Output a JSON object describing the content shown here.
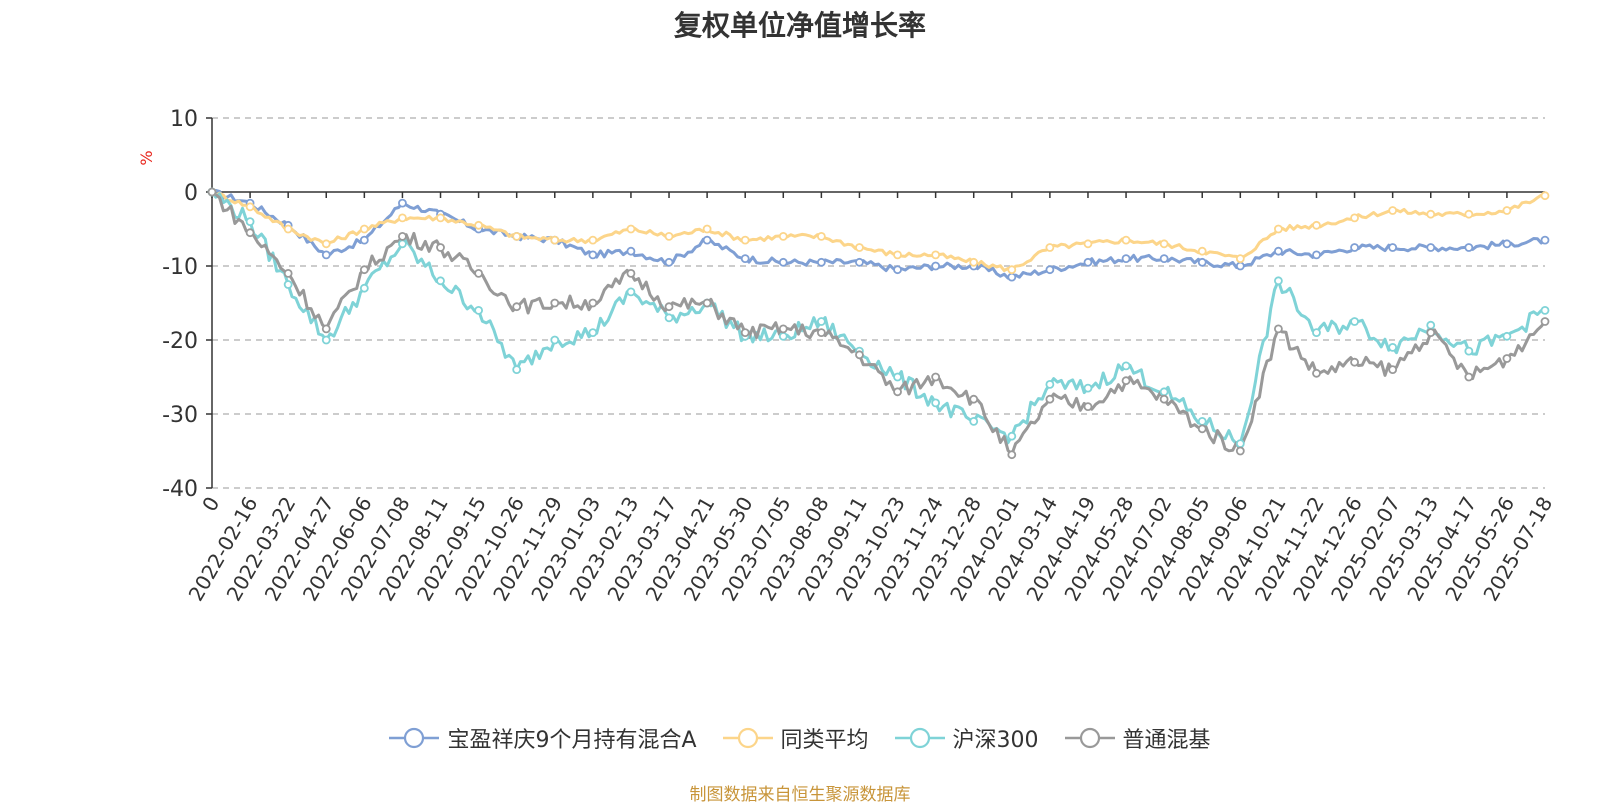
{
  "colors": {
    "series": [
      "#7f9fd4",
      "#fcd58a",
      "#7fd3d7",
      "#999999"
    ],
    "unit": "#e8251c",
    "source": "#c8953a",
    "grid": "#bbbbbb",
    "axis": "#333333"
  },
  "chart_data": {
    "type": "line",
    "title": "复权单位净值增长率",
    "ylabel": "%",
    "ylim": [
      -40,
      10
    ],
    "yticks": [
      10,
      0,
      -10,
      -20,
      -30,
      -40
    ],
    "grid": "dashed horizontal",
    "legend_position": "bottom-center",
    "x_labels": [
      "0",
      "2022-02-16",
      "2022-03-22",
      "2022-04-27",
      "2022-06-06",
      "2022-07-08",
      "2022-08-11",
      "2022-09-15",
      "2022-10-26",
      "2022-11-29",
      "2023-01-03",
      "2023-02-13",
      "2023-03-17",
      "2023-04-21",
      "2023-05-30",
      "2023-07-05",
      "2023-08-08",
      "2023-09-11",
      "2023-10-23",
      "2023-11-24",
      "2023-12-28",
      "2024-02-01",
      "2024-03-14",
      "2024-04-19",
      "2024-05-28",
      "2024-07-02",
      "2024-08-05",
      "2024-09-06",
      "2024-10-21",
      "2024-11-22",
      "2024-12-26",
      "2025-02-07",
      "2025-03-13",
      "2025-04-17",
      "2025-05-26",
      "2025-07-18"
    ],
    "series": [
      {
        "name": "宝盈祥庆9个月持有混合A",
        "values": [
          0,
          -1.5,
          -4.5,
          -8.5,
          -6.5,
          -1.5,
          -3,
          -5,
          -6,
          -6.5,
          -8.5,
          -8,
          -9.5,
          -6.5,
          -9,
          -9.5,
          -9.5,
          -9.5,
          -10.5,
          -10,
          -10,
          -11.5,
          -10.5,
          -9.5,
          -9,
          -9,
          -9.5,
          -10,
          -8,
          -8.5,
          -7.5,
          -7.5,
          -7.5,
          -7.5,
          -7,
          -6.5
        ]
      },
      {
        "name": "同类平均",
        "values": [
          0,
          -2,
          -5,
          -7,
          -5,
          -3.5,
          -3.5,
          -4.5,
          -6,
          -6.5,
          -6.5,
          -5,
          -6,
          -5,
          -6.5,
          -6,
          -6,
          -7.5,
          -8.5,
          -8.5,
          -9.5,
          -10.5,
          -7.5,
          -7,
          -6.5,
          -7,
          -8,
          -9,
          -5,
          -4.5,
          -3.5,
          -2.5,
          -3,
          -3,
          -2.5,
          -0.5
        ]
      },
      {
        "name": "沪深300",
        "values": [
          0,
          -4,
          -12.5,
          -20,
          -13,
          -7,
          -12,
          -16,
          -24,
          -20,
          -19,
          -13.5,
          -17,
          -15,
          -19.5,
          -19.5,
          -17.5,
          -21.5,
          -25,
          -28.5,
          -31,
          -33,
          -26,
          -26.5,
          -23.5,
          -27,
          -31,
          -34,
          -12,
          -19,
          -17.5,
          -21,
          -18,
          -21.5,
          -19.5,
          -16
        ]
      },
      {
        "name": "普通混基",
        "values": [
          0,
          -5.5,
          -11,
          -18.5,
          -10.5,
          -6,
          -7.5,
          -11,
          -15.5,
          -15,
          -15,
          -11,
          -15.5,
          -15,
          -19,
          -18.5,
          -19,
          -22,
          -27,
          -25,
          -28,
          -35.5,
          -28,
          -29,
          -25.5,
          -28,
          -32,
          -35,
          -18.5,
          -24.5,
          -23,
          -24,
          -19,
          -25,
          -22.5,
          -17.5
        ]
      }
    ]
  },
  "source_text": "制图数据来自恒生聚源数据库"
}
